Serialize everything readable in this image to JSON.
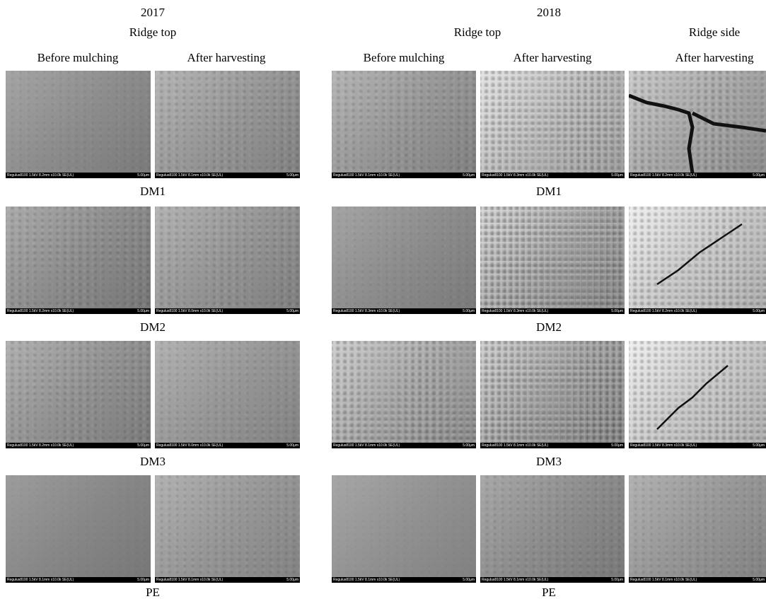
{
  "left": {
    "year": "2017",
    "location": "Ridge top",
    "columns": [
      "Before mulching",
      "After harvesting"
    ]
  },
  "right": {
    "year": "2018",
    "groups": [
      {
        "label": "Ridge top",
        "columns": [
          "Before mulching",
          "After harvesting"
        ]
      },
      {
        "label": "Ridge side",
        "columns": [
          "After harvesting"
        ]
      }
    ]
  },
  "rows": [
    {
      "label": "DM1",
      "panels": [
        {
          "info": "Regulus8100 1.5kV 8.2mm x10.0k SE(UL)",
          "scale": "5.00μm"
        },
        {
          "info": "Regulus8100 1.5kV 8.1mm x10.0k SE(UL)",
          "scale": "5.00μm"
        },
        {
          "info": "Regulus8100 1.5kV 8.1mm x10.0k SE(UL)",
          "scale": "5.00μm"
        },
        {
          "info": "Regulus8100 1.5kV 8.3mm x10.0k SE(UL)",
          "scale": "5.00μm"
        },
        {
          "info": "Regulus8100 1.5kV 8.2mm x10.0k SE(UL)",
          "scale": "5.00μm"
        }
      ]
    },
    {
      "label": "DM2",
      "panels": [
        {
          "info": "Regulus8100 1.5kV 8.2mm x10.0k SE(UL)",
          "scale": "5.00μm"
        },
        {
          "info": "Regulus8100 1.5kV 8.0mm x10.0k SE(UL)",
          "scale": "5.00μm"
        },
        {
          "info": "Regulus8100 1.5kV 8.3mm x10.0k SE(UL)",
          "scale": "5.00μm"
        },
        {
          "info": "Regulus8100 1.5kV 8.3mm x10.0k SE(UL)",
          "scale": "5.00μm"
        },
        {
          "info": "Regulus8100 1.5kV 8.2mm x10.0k SE(UL)",
          "scale": "5.00μm"
        }
      ]
    },
    {
      "label": "DM3",
      "panels": [
        {
          "info": "Regulus8100 1.5kV 8.2mm x10.0k SE(UL)",
          "scale": "5.00μm"
        },
        {
          "info": "Regulus8100 1.5kV 8.0mm x10.0k SE(UL)",
          "scale": "5.00μm"
        },
        {
          "info": "Regulus8100 1.5kV 8.1mm x10.0k SE(UL)",
          "scale": "5.00μm"
        },
        {
          "info": "Regulus8100 1.5kV 8.1mm x10.0k SE(UL)",
          "scale": "5.00μm"
        },
        {
          "info": "Regulus8100 1.5kV 8.3mm x10.0k SE(UL)",
          "scale": "5.00μm"
        }
      ]
    },
    {
      "label": "PE",
      "panels": [
        {
          "info": "Regulus8100 1.5kV 8.1mm x10.0k SE(UL)",
          "scale": "5.00μm"
        },
        {
          "info": "Regulus8100 1.5kV 8.1mm x10.0k SE(UL)",
          "scale": "5.00μm"
        },
        {
          "info": "Regulus8100 1.5kV 8.1mm x10.0k SE(UL)",
          "scale": "5.00μm"
        },
        {
          "info": "Regulus8100 1.5kV 8.1mm x10.0k SE(UL)",
          "scale": "5.00μm"
        },
        {
          "info": "Regulus8100 1.5kV 8.1mm x10.0k SE(UL)",
          "scale": "5.00μm"
        }
      ]
    }
  ]
}
